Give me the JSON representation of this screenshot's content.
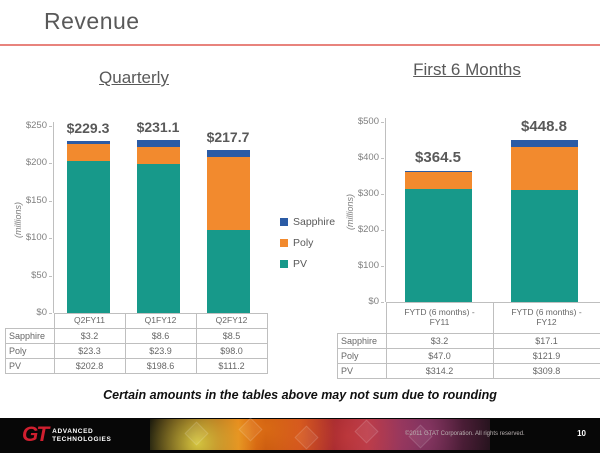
{
  "slide": {
    "title": "Revenue",
    "footnote": "Certain amounts in the tables above may not sum due to rounding"
  },
  "colors": {
    "sapphire": "#2b5ba5",
    "poly": "#f28a2e",
    "pv": "#17998a",
    "accent_line": "#e8837d"
  },
  "legend": {
    "items": [
      {
        "label": "Sapphire",
        "color": "#2b5ba5"
      },
      {
        "label": "Poly",
        "color": "#f28a2e"
      },
      {
        "label": "PV",
        "color": "#17998a"
      }
    ]
  },
  "chart_data": [
    {
      "type": "bar",
      "stacked": true,
      "title": "Quarterly",
      "ylabel": "(millions)",
      "ylim": [
        0,
        250
      ],
      "yticks": [
        "$250",
        "$200",
        "$150",
        "$100",
        "$50",
        "$0"
      ],
      "categories": [
        "Q2FY11",
        "Q1FY12",
        "Q2FY12"
      ],
      "series": [
        {
          "name": "PV",
          "color": "#17998a",
          "values": [
            202.8,
            198.6,
            111.2
          ]
        },
        {
          "name": "Poly",
          "color": "#f28a2e",
          "values": [
            23.3,
            23.9,
            98.0
          ]
        },
        {
          "name": "Sapphire",
          "color": "#2b5ba5",
          "values": [
            3.2,
            8.6,
            8.5
          ]
        }
      ],
      "totals": [
        "$229.3",
        "$231.1",
        "$217.7"
      ],
      "table": {
        "rows": [
          {
            "label": "Sapphire",
            "values": [
              "$3.2",
              "$8.6",
              "$8.5"
            ]
          },
          {
            "label": "Poly",
            "values": [
              "$23.3",
              "$23.9",
              "$98.0"
            ]
          },
          {
            "label": "PV",
            "values": [
              "$202.8",
              "$198.6",
              "$111.2"
            ]
          }
        ]
      }
    },
    {
      "type": "bar",
      "stacked": true,
      "title": "First 6 Months",
      "ylabel": "(millions)",
      "ylim": [
        0,
        500
      ],
      "yticks": [
        "$500",
        "$400",
        "$300",
        "$200",
        "$100",
        "$0"
      ],
      "categories": [
        "FYTD (6 months) -\nFY11",
        "FYTD (6 months) -\nFY12"
      ],
      "series": [
        {
          "name": "PV",
          "color": "#17998a",
          "values": [
            314.2,
            309.8
          ]
        },
        {
          "name": "Poly",
          "color": "#f28a2e",
          "values": [
            47.0,
            121.9
          ]
        },
        {
          "name": "Sapphire",
          "color": "#2b5ba5",
          "values": [
            3.2,
            17.1
          ]
        }
      ],
      "totals": [
        "$364.5",
        "$448.8"
      ],
      "table": {
        "rows": [
          {
            "label": "Sapphire",
            "values": [
              "$3.2",
              "$17.1"
            ]
          },
          {
            "label": "Poly",
            "values": [
              "$47.0",
              "$121.9"
            ]
          },
          {
            "label": "PV",
            "values": [
              "$314.2",
              "$309.8"
            ]
          }
        ]
      }
    }
  ],
  "footer": {
    "logo_gt": "GT",
    "logo_text": "ADVANCED\nTECHNOLOGIES",
    "copyright": "©2011 GTAT Corporation.  All rights reserved.",
    "page_number": "10"
  }
}
